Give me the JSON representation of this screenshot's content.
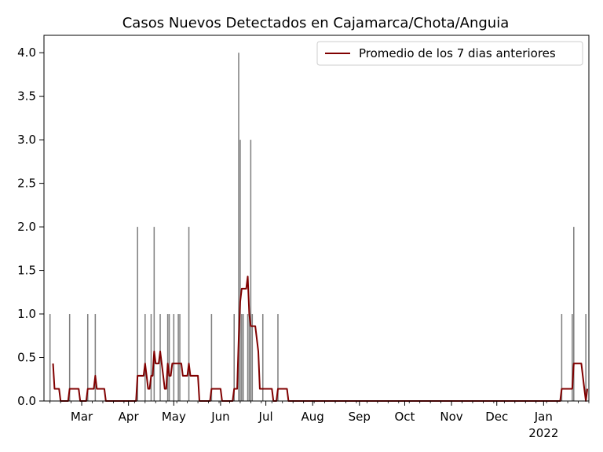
{
  "chart_data": {
    "type": "bar",
    "title": "Casos Nuevos Detectados en Cajamarca/Chota/Anguia",
    "xlabel": "",
    "ylabel": "",
    "x_range": [
      "2021-02-04",
      "2022-01-31"
    ],
    "ylim": [
      0,
      4.2
    ],
    "grid": false,
    "legend": {
      "placement": "top-right",
      "entries": [
        {
          "label": "Promedio de los 7 dias anteriores",
          "color": "#800000"
        }
      ]
    },
    "x_ticks": [
      {
        "date": "2021-03-01",
        "label": "Mar"
      },
      {
        "date": "2021-04-01",
        "label": "Apr"
      },
      {
        "date": "2021-05-01",
        "label": "May"
      },
      {
        "date": "2021-06-01",
        "label": "Jun"
      },
      {
        "date": "2021-07-01",
        "label": "Jul"
      },
      {
        "date": "2021-08-01",
        "label": "Aug"
      },
      {
        "date": "2021-09-01",
        "label": "Sep"
      },
      {
        "date": "2021-10-01",
        "label": "Oct"
      },
      {
        "date": "2021-11-01",
        "label": "Nov"
      },
      {
        "date": "2021-12-01",
        "label": "Dec"
      },
      {
        "date": "2022-01-01",
        "label": "Jan",
        "sublabel": "2022"
      }
    ],
    "y_ticks": [
      "0.0",
      "0.5",
      "1.0",
      "1.5",
      "2.0",
      "2.5",
      "3.0",
      "3.5",
      "4.0"
    ],
    "series": [
      {
        "type": "bar",
        "color": "#808080",
        "points": [
          [
            "2021-02-08",
            1
          ],
          [
            "2021-02-21",
            1
          ],
          [
            "2021-03-05",
            1
          ],
          [
            "2021-03-10",
            1
          ],
          [
            "2021-04-07",
            2
          ],
          [
            "2021-04-12",
            1
          ],
          [
            "2021-04-16",
            1
          ],
          [
            "2021-04-18",
            2
          ],
          [
            "2021-04-22",
            1
          ],
          [
            "2021-04-27",
            1
          ],
          [
            "2021-04-28",
            1
          ],
          [
            "2021-05-01",
            1
          ],
          [
            "2021-05-04",
            1
          ],
          [
            "2021-05-05",
            1
          ],
          [
            "2021-05-11",
            2
          ],
          [
            "2021-05-26",
            1
          ],
          [
            "2021-06-10",
            1
          ],
          [
            "2021-06-13",
            4
          ],
          [
            "2021-06-14",
            3
          ],
          [
            "2021-06-15",
            1
          ],
          [
            "2021-06-16",
            1
          ],
          [
            "2021-06-19",
            1
          ],
          [
            "2021-06-20",
            1
          ],
          [
            "2021-06-21",
            3
          ],
          [
            "2021-06-22",
            1
          ],
          [
            "2021-06-29",
            1
          ],
          [
            "2021-07-09",
            1
          ],
          [
            "2022-01-13",
            1
          ],
          [
            "2022-01-20",
            1
          ],
          [
            "2022-01-21",
            2
          ],
          [
            "2022-01-29",
            1
          ]
        ]
      },
      {
        "type": "line",
        "name": "Promedio de los 7 dias anteriores",
        "color": "#800000",
        "points": [
          [
            "2021-02-10",
            0.43
          ],
          [
            "2021-02-11",
            0.14
          ],
          [
            "2021-02-14",
            0.14
          ],
          [
            "2021-02-15",
            0
          ],
          [
            "2021-02-20",
            0
          ],
          [
            "2021-02-21",
            0.14
          ],
          [
            "2021-02-27",
            0.14
          ],
          [
            "2021-02-28",
            0
          ],
          [
            "2021-03-04",
            0
          ],
          [
            "2021-03-05",
            0.14
          ],
          [
            "2021-03-09",
            0.14
          ],
          [
            "2021-03-10",
            0.29
          ],
          [
            "2021-03-11",
            0.14
          ],
          [
            "2021-03-16",
            0.14
          ],
          [
            "2021-03-17",
            0
          ],
          [
            "2021-04-06",
            0
          ],
          [
            "2021-04-07",
            0.29
          ],
          [
            "2021-04-11",
            0.29
          ],
          [
            "2021-04-12",
            0.43
          ],
          [
            "2021-04-13",
            0.29
          ],
          [
            "2021-04-14",
            0.14
          ],
          [
            "2021-04-15",
            0.14
          ],
          [
            "2021-04-16",
            0.29
          ],
          [
            "2021-04-17",
            0.29
          ],
          [
            "2021-04-18",
            0.57
          ],
          [
            "2021-04-19",
            0.43
          ],
          [
            "2021-04-21",
            0.43
          ],
          [
            "2021-04-22",
            0.57
          ],
          [
            "2021-04-23",
            0.43
          ],
          [
            "2021-04-24",
            0.29
          ],
          [
            "2021-04-25",
            0.14
          ],
          [
            "2021-04-26",
            0.14
          ],
          [
            "2021-04-27",
            0.43
          ],
          [
            "2021-04-28",
            0.29
          ],
          [
            "2021-04-29",
            0.29
          ],
          [
            "2021-04-30",
            0.43
          ],
          [
            "2021-05-06",
            0.43
          ],
          [
            "2021-05-07",
            0.29
          ],
          [
            "2021-05-10",
            0.29
          ],
          [
            "2021-05-11",
            0.43
          ],
          [
            "2021-05-12",
            0.29
          ],
          [
            "2021-05-17",
            0.29
          ],
          [
            "2021-05-18",
            0
          ],
          [
            "2021-05-25",
            0
          ],
          [
            "2021-05-26",
            0.14
          ],
          [
            "2021-06-01",
            0.14
          ],
          [
            "2021-06-02",
            0
          ],
          [
            "2021-06-09",
            0
          ],
          [
            "2021-06-10",
            0.14
          ],
          [
            "2021-06-12",
            0.14
          ],
          [
            "2021-06-13",
            0.71
          ],
          [
            "2021-06-14",
            1.14
          ],
          [
            "2021-06-15",
            1.29
          ],
          [
            "2021-06-18",
            1.29
          ],
          [
            "2021-06-19",
            1.43
          ],
          [
            "2021-06-20",
            1.0
          ],
          [
            "2021-06-21",
            0.86
          ],
          [
            "2021-06-24",
            0.86
          ],
          [
            "2021-06-26",
            0.57
          ],
          [
            "2021-06-27",
            0.14
          ],
          [
            "2021-07-05",
            0.14
          ],
          [
            "2021-07-06",
            0
          ],
          [
            "2021-07-08",
            0
          ],
          [
            "2021-07-09",
            0.14
          ],
          [
            "2021-07-15",
            0.14
          ],
          [
            "2021-07-16",
            0
          ],
          [
            "2022-01-12",
            0
          ],
          [
            "2022-01-13",
            0.14
          ],
          [
            "2022-01-20",
            0.14
          ],
          [
            "2022-01-21",
            0.43
          ],
          [
            "2022-01-26",
            0.43
          ],
          [
            "2022-01-28",
            0.14
          ],
          [
            "2022-01-29",
            0
          ],
          [
            "2022-01-30",
            0.14
          ]
        ]
      }
    ]
  }
}
